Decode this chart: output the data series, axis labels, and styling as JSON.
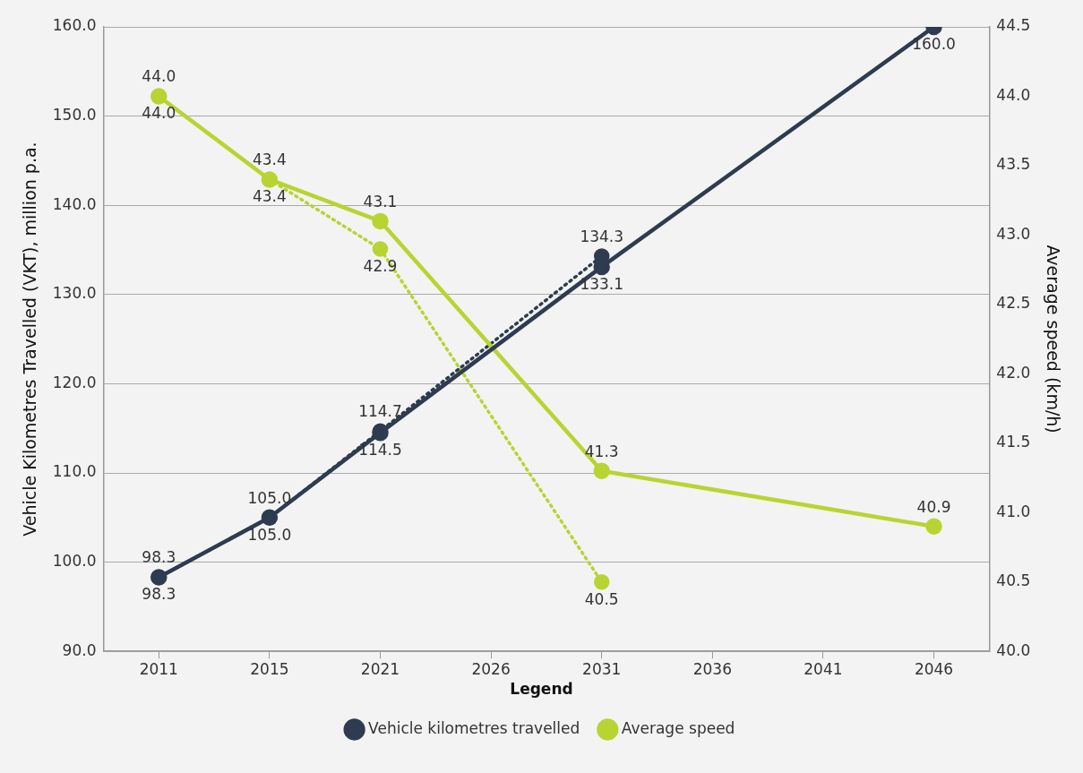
{
  "chart_data": {
    "type": "line",
    "ylabel": "Vehicle Kilometres Travelled (VKT), million p.a.",
    "y2label": "Average speed (km/h)",
    "legend_title": "Legend",
    "categories": [
      "2011",
      "2015",
      "2021",
      "2026",
      "2031",
      "2036",
      "2041",
      "2046"
    ],
    "series": [
      {
        "color": "#2e3b50",
        "line_style": "dotted",
        "values": [
          98.3,
          105.0,
          114.7,
          null,
          134.3,
          null,
          null,
          null
        ],
        "value_labels": [
          "98.3",
          "105.0",
          "114.7",
          null,
          "134.3",
          null,
          null,
          null
        ]
      },
      {
        "name": "Vehicle kilometres travelled",
        "color": "#2e3b50",
        "line_style": "solid",
        "values": [
          98.3,
          105.0,
          114.5,
          null,
          133.1,
          null,
          null,
          160.0
        ],
        "value_labels": [
          "98.3",
          "105.0",
          "114.5",
          null,
          "133.1",
          null,
          null,
          "160.0"
        ]
      },
      {
        "name": "Average speed",
        "axis": "y2",
        "color": "#b8d432",
        "line_style": "solid",
        "values": [
          44.0,
          43.4,
          43.1,
          null,
          41.3,
          null,
          null,
          40.9
        ],
        "value_labels": [
          "44.0",
          "43.4",
          "43.1",
          null,
          "41.3",
          null,
          null,
          "40.9"
        ]
      },
      {
        "axis": "y2",
        "color": "#b8d432",
        "line_style": "dotted",
        "values": [
          44.0,
          43.4,
          42.9,
          null,
          40.5,
          null,
          null,
          null
        ],
        "value_labels": [
          "44.0",
          "43.4",
          "42.9",
          null,
          "40.5",
          null,
          null,
          null
        ]
      }
    ],
    "ylim": [
      90,
      160
    ],
    "yticks": [
      {
        "value": 90,
        "label": "90.0"
      },
      {
        "value": 100,
        "label": "100.0"
      },
      {
        "value": 110,
        "label": "110.0"
      },
      {
        "value": 120,
        "label": "120.0"
      },
      {
        "value": 130,
        "label": "130.0"
      },
      {
        "value": 140,
        "label": "140.0"
      },
      {
        "value": 150,
        "label": "150.0"
      },
      {
        "value": 160,
        "label": "160.0"
      }
    ],
    "y2lim": [
      40,
      44.5
    ],
    "y2ticks": [
      {
        "value": 40,
        "label": "40.0"
      },
      {
        "value": 40.5,
        "label": "40.5"
      },
      {
        "value": 41,
        "label": "41.0"
      },
      {
        "value": 41.5,
        "label": "41.5"
      },
      {
        "value": 42,
        "label": "42.0"
      },
      {
        "value": 42.5,
        "label": "42.5"
      },
      {
        "value": 43,
        "label": "43.0"
      },
      {
        "value": 43.5,
        "label": "43.5"
      },
      {
        "value": 44,
        "label": "44.0"
      },
      {
        "value": 44.5,
        "label": "44.5"
      }
    ],
    "grid": "y",
    "legend": "bottom",
    "marker": "circle"
  }
}
